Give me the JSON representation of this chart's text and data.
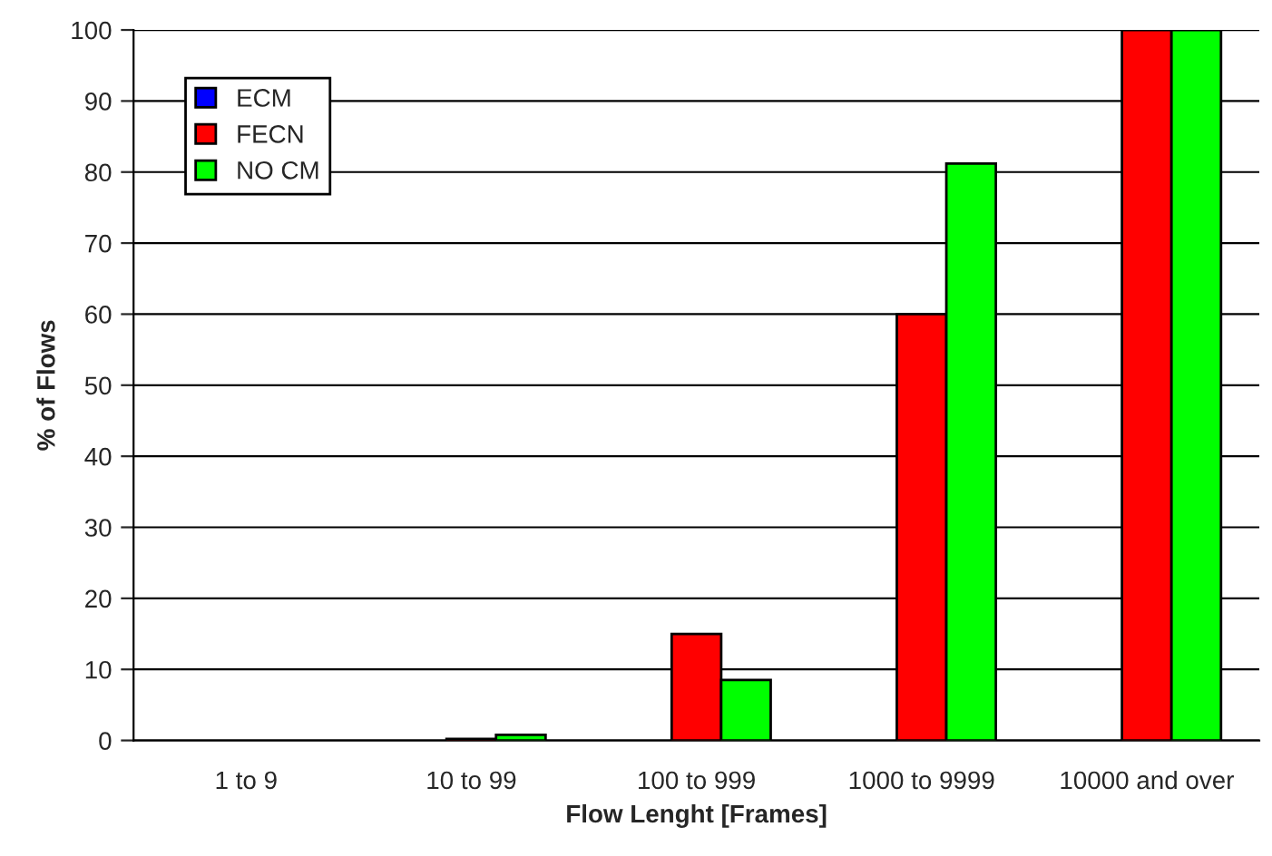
{
  "chart_data": {
    "type": "bar",
    "xlabel": "Flow Lenght [Frames]",
    "ylabel": "% of Flows",
    "categories": [
      "1 to 9",
      "10 to 99",
      "100 to 999",
      "1000 to 9999",
      "10000 and over"
    ],
    "series": [
      {
        "name": "ECM",
        "color": "#0000ff",
        "values": [
          0,
          0,
          0,
          0,
          0
        ]
      },
      {
        "name": "FECN",
        "color": "#ff0000",
        "values": [
          0,
          0.2,
          15,
          60,
          100
        ]
      },
      {
        "name": "NO CM",
        "color": "#00ff00",
        "values": [
          0,
          0.8,
          8.5,
          81.2,
          100
        ]
      }
    ],
    "ylim": [
      0,
      100
    ],
    "yticks": [
      0,
      10,
      20,
      30,
      40,
      50,
      60,
      70,
      80,
      90,
      100
    ],
    "grid": "y",
    "legend": "top left"
  }
}
